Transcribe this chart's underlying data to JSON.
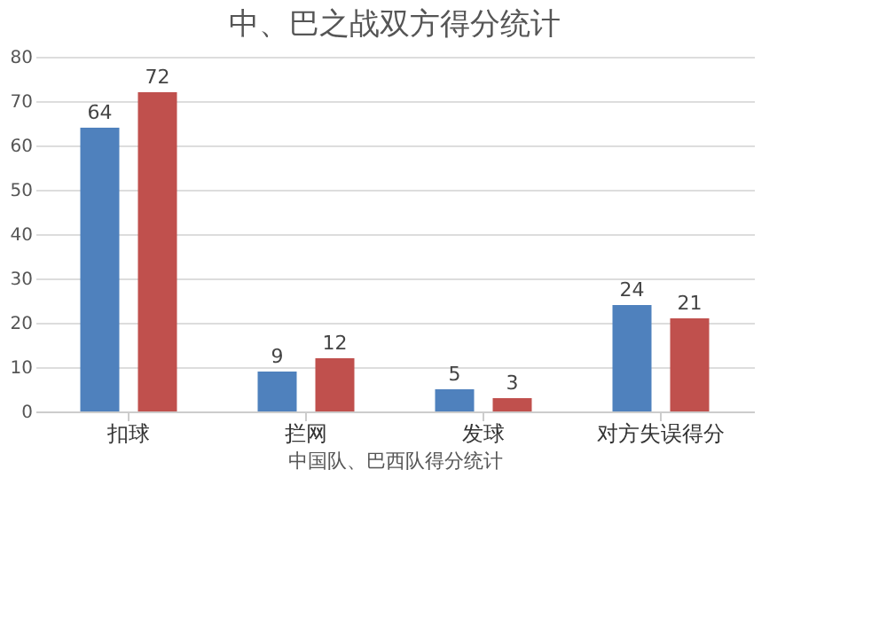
{
  "chart_data": {
    "type": "bar",
    "title": "中、巴之战双方得分统计",
    "xlabel": "中国队、巴西队得分统计",
    "categories": [
      "扣球",
      "拦网",
      "发球",
      "对方失误得分"
    ],
    "series": [
      {
        "color": "#4f81bd",
        "values": [
          64,
          9,
          5,
          24
        ]
      },
      {
        "color": "#c0504d",
        "values": [
          72,
          12,
          3,
          21
        ]
      }
    ],
    "ylim": [
      0,
      80
    ],
    "yticks": [
      0,
      10,
      20,
      30,
      40,
      50,
      60,
      70,
      80
    ],
    "grid": "y",
    "data_labels": true
  }
}
